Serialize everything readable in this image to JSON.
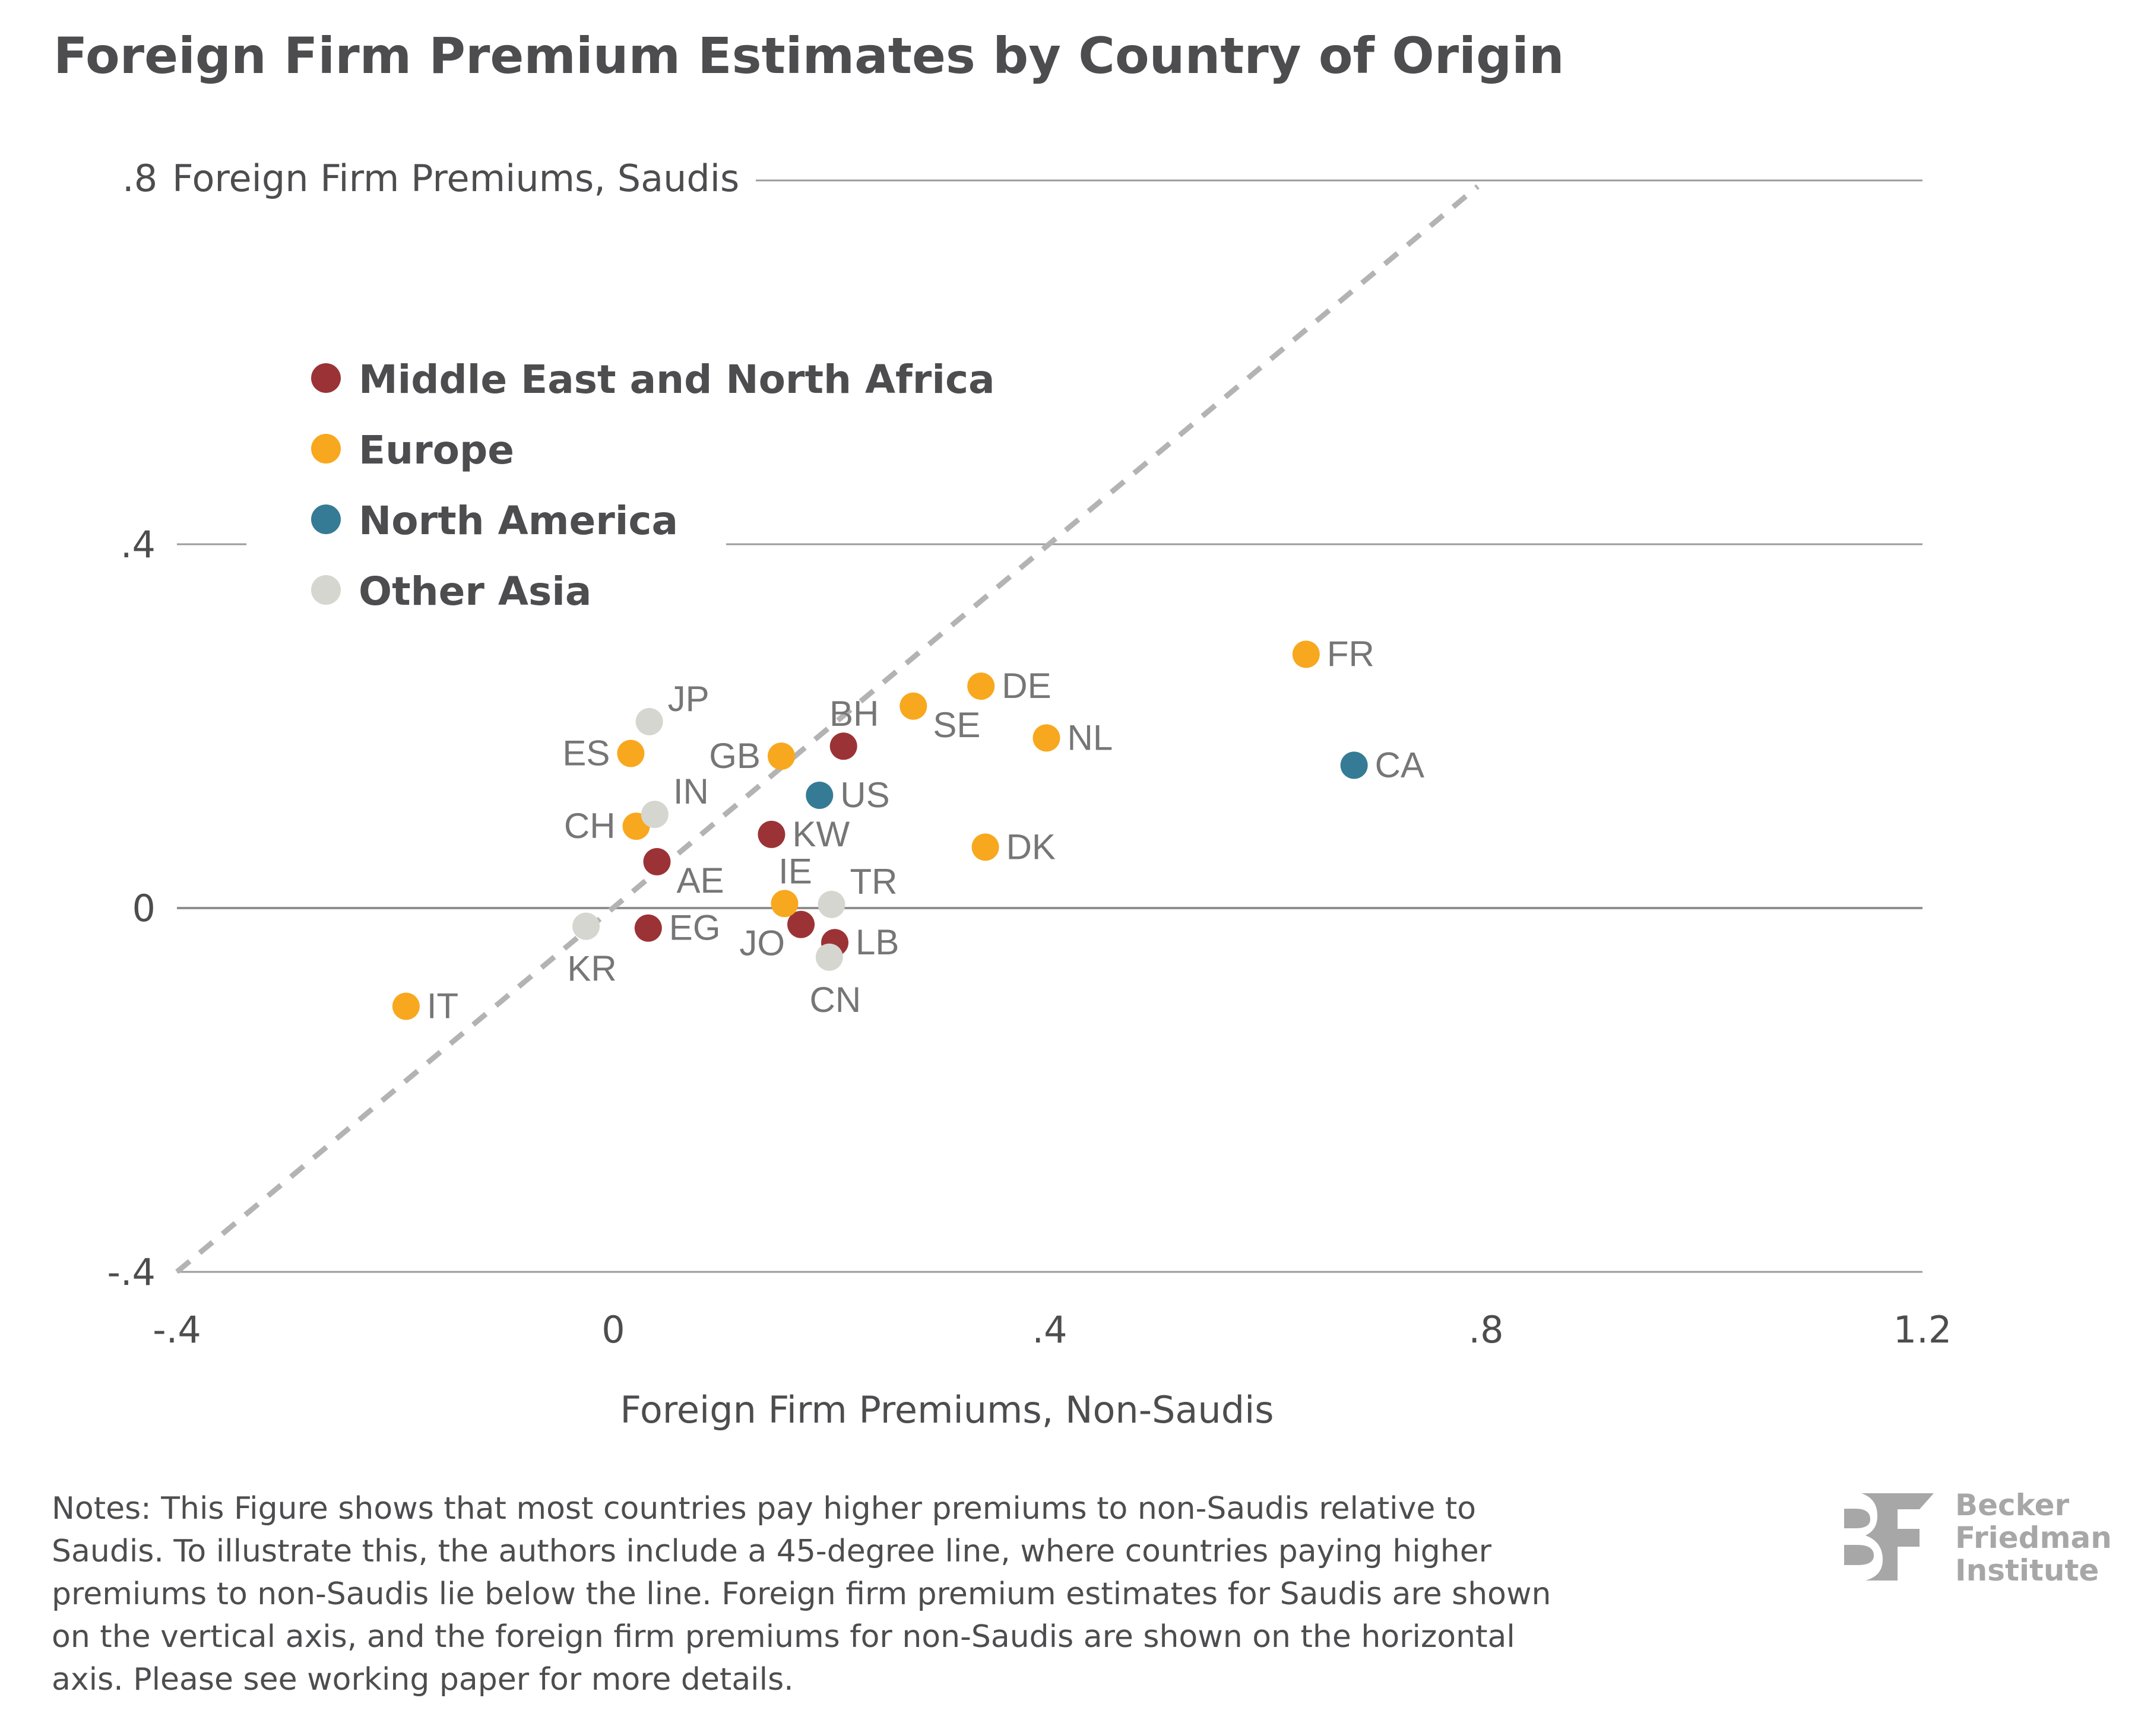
{
  "title": "Foreign Firm Premium Estimates by Country of Origin",
  "notes": [
    "Notes: This Figure shows that most countries pay higher premiums to non-Saudis relative to",
    "Saudis. To illustrate this, the authors include a 45-degree line, where countries paying higher",
    "premiums to non-Saudis lie below the line. Foreign firm premium estimates for Saudis are shown",
    "on the vertical axis, and the foreign firm premiums for non-Saudis are shown on the horizontal",
    "axis. Please see working paper for more details."
  ],
  "logo": {
    "mark": "BF",
    "lines": [
      "Becker",
      "Friedman",
      "Institute"
    ]
  },
  "chart_data": {
    "type": "scatter",
    "title": "Foreign Firm Premium Estimates by Country of Origin",
    "xlabel": "Foreign Firm Premiums, Non-Saudis",
    "ylabel": "Foreign Firm Premiums, Saudis",
    "xlim": [
      -0.4,
      1.2
    ],
    "ylim": [
      -0.4,
      0.8
    ],
    "xticks": [
      -0.4,
      0,
      0.4,
      0.8,
      1.2
    ],
    "xtick_labels": [
      "-.4",
      "0",
      ".4",
      ".8",
      "1.2"
    ],
    "yticks": [
      -0.4,
      0,
      0.4,
      0.8
    ],
    "ytick_labels": [
      "-.4",
      "0",
      ".4",
      ".8"
    ],
    "grid": "horizontal",
    "legend_position": "top-left",
    "reference_line": {
      "label": "45-degree line",
      "from": [
        -0.4,
        -0.4
      ],
      "to": [
        0.8,
        0.8
      ],
      "style": "dashed",
      "color": "#b3b3b3"
    },
    "series": [
      {
        "name": "Middle East and North Africa",
        "color": "#9b3336",
        "points": [
          {
            "label": "BH",
            "x": 0.211,
            "y": 0.178,
            "label_pos": "above"
          },
          {
            "label": "KW",
            "x": 0.145,
            "y": 0.081,
            "label_pos": "right"
          },
          {
            "label": "AE",
            "x": 0.04,
            "y": 0.051,
            "label_pos": "below-right"
          },
          {
            "label": "EG",
            "x": 0.032,
            "y": -0.022,
            "label_pos": "right"
          },
          {
            "label": "JO",
            "x": 0.172,
            "y": -0.018,
            "label_pos": "below-left"
          },
          {
            "label": "LB",
            "x": 0.203,
            "y": -0.038,
            "label_pos": "right"
          }
        ]
      },
      {
        "name": "Europe",
        "color": "#f8a81e",
        "points": [
          {
            "label": "FR",
            "x": 0.635,
            "y": 0.279,
            "label_pos": "right"
          },
          {
            "label": "DE",
            "x": 0.337,
            "y": 0.244,
            "label_pos": "right"
          },
          {
            "label": "SE",
            "x": 0.275,
            "y": 0.222,
            "label_pos": "below-right"
          },
          {
            "label": "NL",
            "x": 0.397,
            "y": 0.187,
            "label_pos": "right"
          },
          {
            "label": "GB",
            "x": 0.154,
            "y": 0.167,
            "label_pos": "left"
          },
          {
            "label": "ES",
            "x": 0.016,
            "y": 0.17,
            "label_pos": "left"
          },
          {
            "label": "CH",
            "x": 0.021,
            "y": 0.09,
            "label_pos": "left"
          },
          {
            "label": "DK",
            "x": 0.341,
            "y": 0.067,
            "label_pos": "right"
          },
          {
            "label": "IE",
            "x": 0.157,
            "y": 0.005,
            "label_pos": "above"
          },
          {
            "label": "IT",
            "x": -0.19,
            "y": -0.108,
            "label_pos": "right"
          }
        ]
      },
      {
        "name": "North America",
        "color": "#367b95",
        "points": [
          {
            "label": "CA",
            "x": 0.679,
            "y": 0.157,
            "label_pos": "right"
          },
          {
            "label": "US",
            "x": 0.189,
            "y": 0.124,
            "label_pos": "right"
          }
        ]
      },
      {
        "name": "Other Asia",
        "color": "#d6d6d0",
        "points": [
          {
            "label": "JP",
            "x": 0.033,
            "y": 0.205,
            "label_pos": "above-right"
          },
          {
            "label": "IN",
            "x": 0.038,
            "y": 0.103,
            "label_pos": "above-right"
          },
          {
            "label": "TR",
            "x": 0.2,
            "y": 0.004,
            "label_pos": "above-right"
          },
          {
            "label": "KR",
            "x": -0.025,
            "y": -0.02,
            "label_pos": "below"
          },
          {
            "label": "CN",
            "x": 0.198,
            "y": -0.054,
            "label_pos": "below"
          }
        ]
      }
    ]
  }
}
